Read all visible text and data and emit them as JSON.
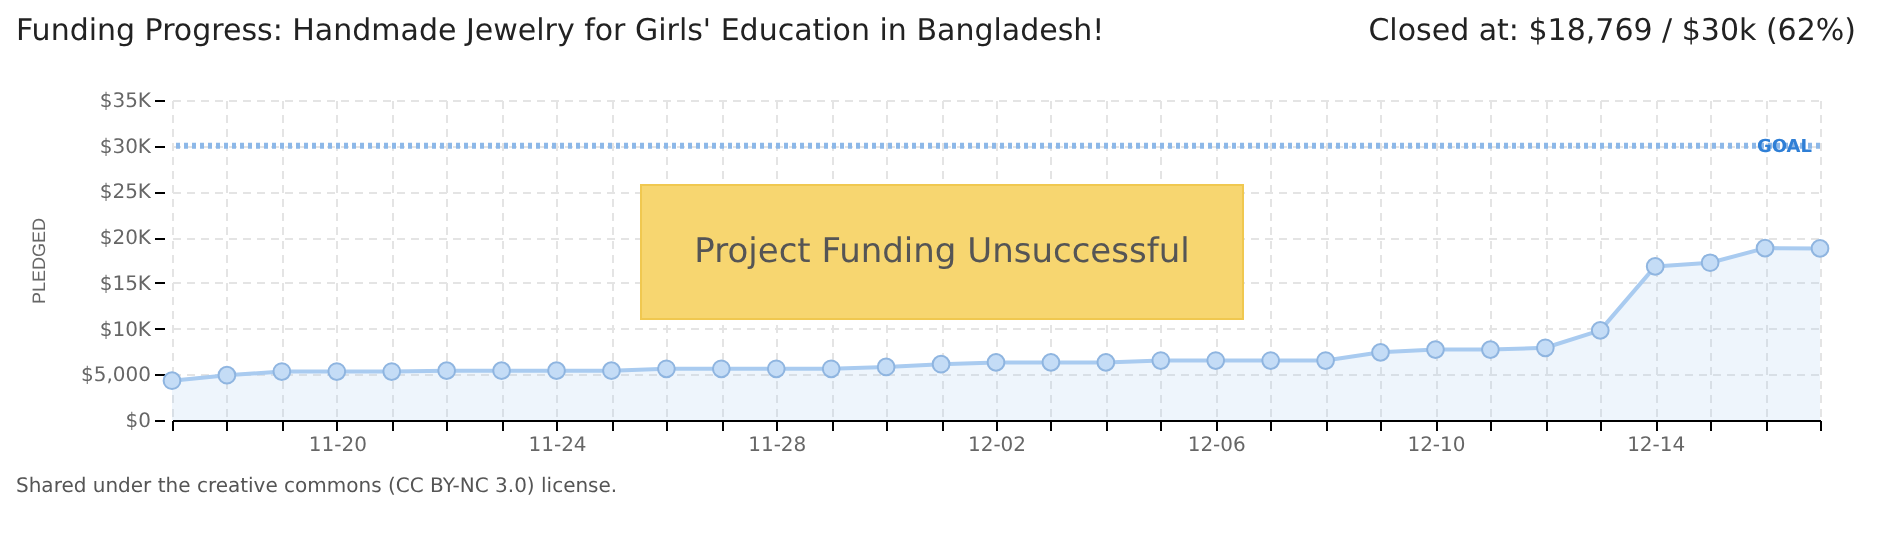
{
  "chart_data": {
    "type": "area",
    "title": "Funding Progress: Handmade Jewelry for Girls' Education in Bangladesh!",
    "subtitle": "Closed at: $18,769 / $30k (62%)",
    "ylabel": "PLEDGED",
    "x": [
      "--11-17",
      "--11-18",
      "--11-19",
      "--11-20",
      "--11-21",
      "--11-22",
      "--11-23",
      "--11-24",
      "--11-25",
      "--11-26",
      "--11-27",
      "--11-28",
      "--11-29",
      "--11-30",
      "--12-01",
      "--12-02",
      "--12-03",
      "--12-04",
      "--12-05",
      "--12-06",
      "--12-07",
      "--12-08",
      "--12-09",
      "--12-10",
      "--12-11",
      "--12-12",
      "--12-13",
      "--12-14",
      "--12-15",
      "--12-16",
      "--12-17"
    ],
    "series": [
      {
        "color": "#a9cbf0",
        "values": [
          4300,
          4900,
          5300,
          5300,
          5300,
          5400,
          5400,
          5400,
          5400,
          5600,
          5600,
          5600,
          5600,
          5800,
          6100,
          6300,
          6300,
          6300,
          6500,
          6500,
          6500,
          6500,
          7400,
          7700,
          7700,
          7900,
          9800,
          16800,
          17200,
          18800,
          18769
        ]
      }
    ],
    "xlim": [
      "--11-17",
      "--12-17"
    ],
    "xticks": [
      {
        "value": "--11-17",
        "label": null
      },
      {
        "value": "--11-18",
        "label": null
      },
      {
        "value": "--11-19",
        "label": null
      },
      {
        "value": "--11-20",
        "label": "11-20"
      },
      {
        "value": "--11-21",
        "label": null
      },
      {
        "value": "--11-22",
        "label": null
      },
      {
        "value": "--11-23",
        "label": null
      },
      {
        "value": "--11-24",
        "label": "11-24"
      },
      {
        "value": "--11-25",
        "label": null
      },
      {
        "value": "--11-26",
        "label": null
      },
      {
        "value": "--11-27",
        "label": null
      },
      {
        "value": "--11-28",
        "label": "11-28"
      },
      {
        "value": "--11-29",
        "label": null
      },
      {
        "value": "--11-30",
        "label": null
      },
      {
        "value": "--12-01",
        "label": null
      },
      {
        "value": "--12-02",
        "label": "12-02"
      },
      {
        "value": "--12-03",
        "label": null
      },
      {
        "value": "--12-04",
        "label": null
      },
      {
        "value": "--12-05",
        "label": null
      },
      {
        "value": "--12-06",
        "label": "12-06"
      },
      {
        "value": "--12-07",
        "label": null
      },
      {
        "value": "--12-08",
        "label": null
      },
      {
        "value": "--12-09",
        "label": null
      },
      {
        "value": "--12-10",
        "label": "12-10"
      },
      {
        "value": "--12-11",
        "label": null
      },
      {
        "value": "--12-12",
        "label": null
      },
      {
        "value": "--12-13",
        "label": null
      },
      {
        "value": "--12-14",
        "label": "12-14"
      },
      {
        "value": "--12-15",
        "label": null
      },
      {
        "value": "--12-16",
        "label": null
      },
      {
        "value": "--12-17",
        "label": null
      }
    ],
    "ylim": [
      0,
      35000
    ],
    "yticks": [
      {
        "value": 0,
        "label": "$0"
      },
      {
        "value": 5000,
        "label": "$5,000"
      },
      {
        "value": 10000,
        "label": "$10K"
      },
      {
        "value": 15000,
        "label": "$15K"
      },
      {
        "value": 20000,
        "label": "$20K"
      },
      {
        "value": 25000,
        "label": "$25K"
      },
      {
        "value": 30000,
        "label": "$30K"
      },
      {
        "value": 35000,
        "label": "$35K"
      }
    ],
    "ref_lines": [
      {
        "axis": "y",
        "value": 30000,
        "label": "GOAL",
        "color": "#8db8e8",
        "line_style": "dotted"
      }
    ],
    "annotations": [
      "Project Funding Unsuccessful",
      "Shared under the creative commons (CC BY-NC 3.0) license."
    ],
    "grid": true,
    "marker": "circle",
    "line_style": "solid"
  }
}
